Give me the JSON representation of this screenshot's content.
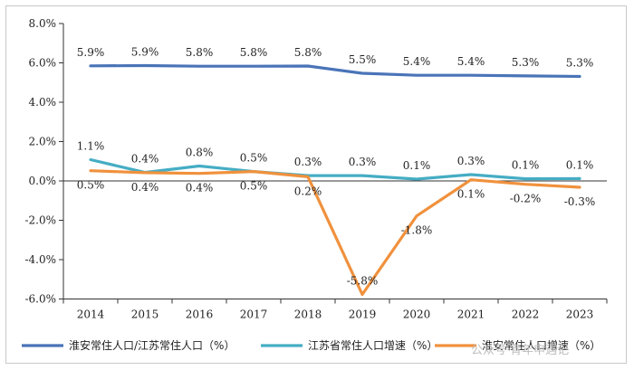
{
  "chart_data": {
    "type": "line",
    "categories": [
      "2014",
      "2015",
      "2016",
      "2017",
      "2018",
      "2019",
      "2020",
      "2021",
      "2022",
      "2023"
    ],
    "ylim": [
      -6.0,
      8.0
    ],
    "yticks": [
      -6.0,
      -4.0,
      -2.0,
      0.0,
      2.0,
      4.0,
      6.0,
      8.0
    ],
    "ytick_labels": [
      "-6.0%",
      "-4.0%",
      "-2.0%",
      "0.0%",
      "2.0%",
      "4.0%",
      "6.0%",
      "8.0%"
    ],
    "series": [
      {
        "name": "淮安常住人口/江苏常住人口（%）",
        "color": "#4a74b8",
        "values": [
          5.85,
          5.86,
          5.83,
          5.83,
          5.84,
          5.47,
          5.37,
          5.37,
          5.34,
          5.31
        ],
        "labels": [
          "5.9%",
          "5.9%",
          "5.8%",
          "5.8%",
          "5.8%",
          "5.5%",
          "5.4%",
          "5.4%",
          "5.3%",
          "5.3%"
        ],
        "label_pos": [
          "above",
          "above",
          "above",
          "above",
          "above",
          "above",
          "above",
          "above",
          "above",
          "above"
        ]
      },
      {
        "name": "江苏省常住人口增速（%）",
        "color": "#45adc4",
        "values": [
          1.08,
          0.43,
          0.76,
          0.48,
          0.27,
          0.27,
          0.09,
          0.32,
          0.11,
          0.12
        ],
        "labels": [
          "1.1%",
          "0.4%",
          "0.8%",
          "0.5%",
          "0.3%",
          "0.3%",
          "0.1%",
          "0.3%",
          "0.1%",
          "0.1%"
        ],
        "label_pos": [
          "above",
          "above",
          "above",
          "above",
          "above",
          "above",
          "above",
          "above",
          "above",
          "above"
        ]
      },
      {
        "name": "淮安常住人口增速（%）",
        "color": "#f0913d",
        "values": [
          0.52,
          0.42,
          0.38,
          0.48,
          0.21,
          -5.77,
          -1.78,
          0.06,
          -0.17,
          -0.32
        ],
        "labels": [
          "0.5%",
          "0.4%",
          "0.4%",
          "0.5%",
          "0.2%",
          "-5.8%",
          "-1.8%",
          "0.1%",
          "-0.2%",
          "-0.3%"
        ],
        "label_pos": [
          "below",
          "below",
          "below",
          "below",
          "below",
          "above",
          "below",
          "below",
          "below",
          "below"
        ]
      }
    ]
  },
  "watermark": "公众号·青年申遇记"
}
